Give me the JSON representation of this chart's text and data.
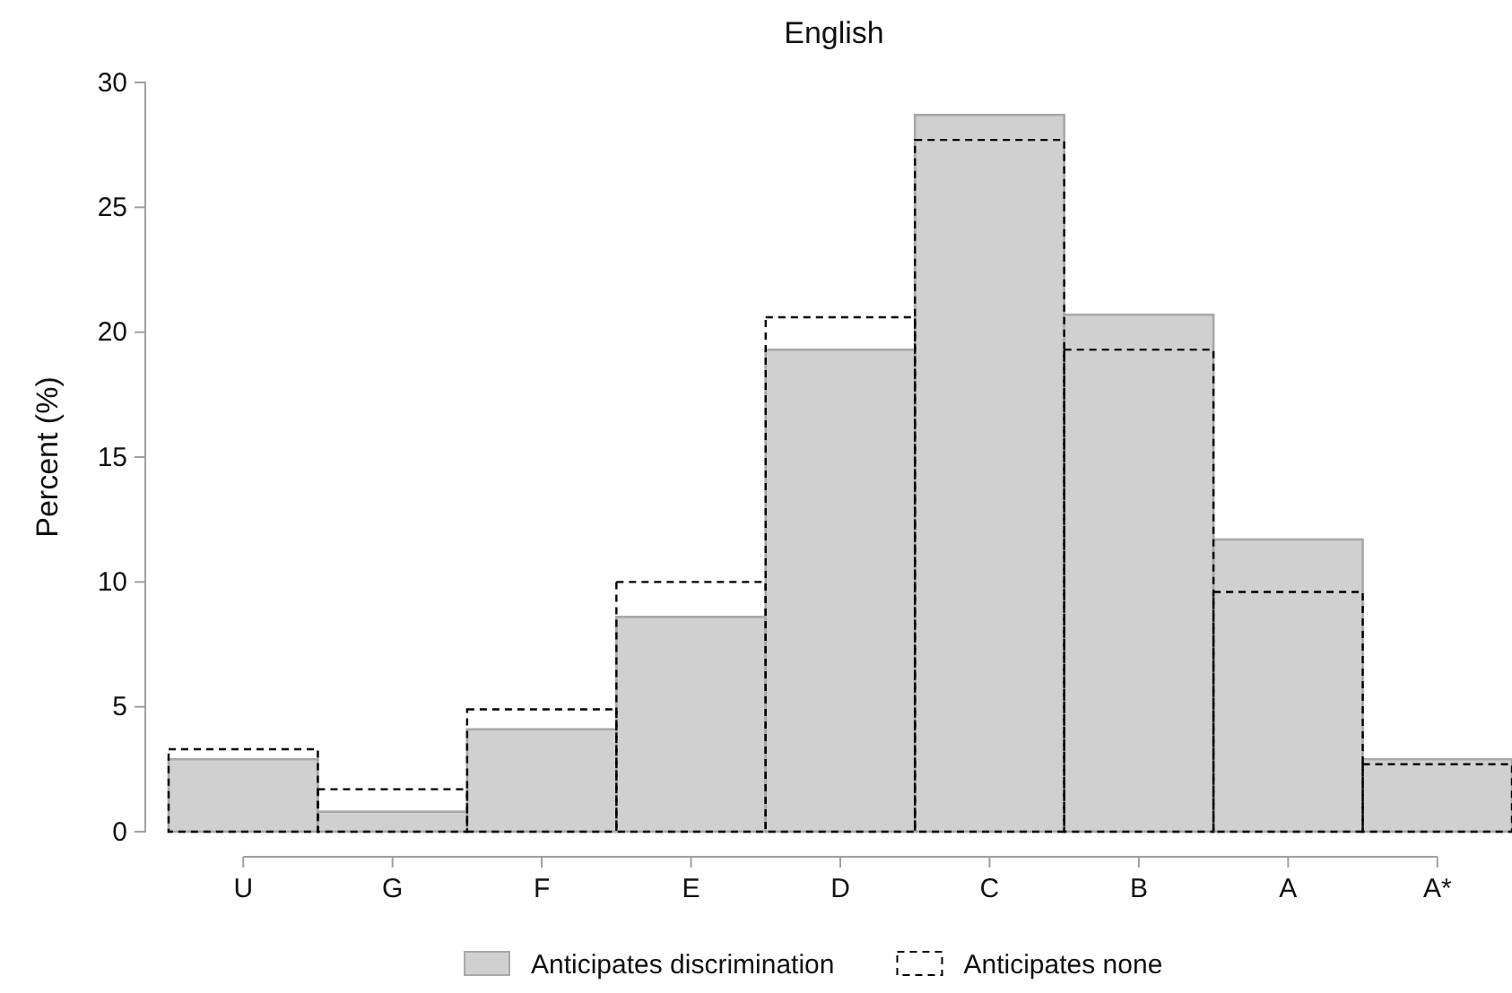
{
  "chart_data": {
    "type": "bar",
    "title": "English",
    "ylabel": "Percent (%)",
    "categories": [
      "U",
      "G",
      "F",
      "E",
      "D",
      "C",
      "B",
      "A",
      "A*"
    ],
    "series": [
      {
        "name": "Anticipates discrimination",
        "color": "#d0d0d0",
        "values": [
          2.9,
          0.8,
          4.1,
          8.6,
          19.3,
          28.7,
          20.7,
          11.7,
          2.9
        ]
      },
      {
        "name": "Anticipates none",
        "color": "#000000",
        "line_style": "dashed",
        "values": [
          3.3,
          1.7,
          4.9,
          10.0,
          20.6,
          27.7,
          19.3,
          9.6,
          2.7
        ]
      }
    ],
    "ylim": [
      0,
      30
    ],
    "yticks": [
      0,
      5,
      10,
      15,
      20,
      25,
      30
    ],
    "grid": false,
    "legend": "bottom"
  }
}
